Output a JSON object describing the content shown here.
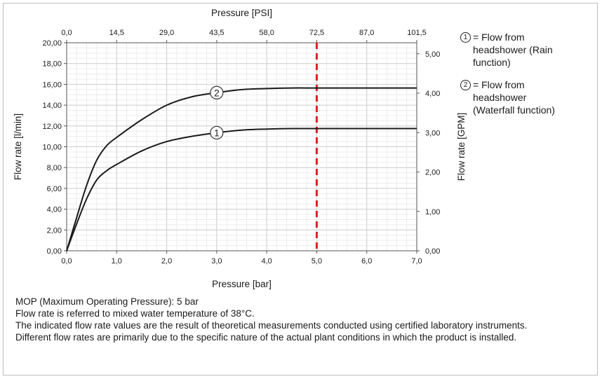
{
  "chart_data": {
    "type": "line",
    "title": "",
    "xlabel": "Pressure [bar]",
    "ylabel": "Flow rate [l/min]",
    "x2label": "Pressure [PSI]",
    "y2label": "Flow rate [GPM]",
    "xlim": [
      0,
      7
    ],
    "ylim": [
      0,
      20
    ],
    "y2lim": [
      0,
      5.28
    ],
    "x_ticks": [
      "0,0",
      "1,0",
      "2,0",
      "3,0",
      "4,0",
      "5,0",
      "6,0",
      "7,0"
    ],
    "x2_ticks": [
      "0,0",
      "14,5",
      "29,0",
      "43,5",
      "58,0",
      "72,5",
      "87,0",
      "101,5"
    ],
    "y_ticks": [
      "0,00",
      "2,00",
      "4,00",
      "6,00",
      "8,00",
      "10,00",
      "12,00",
      "14,00",
      "16,00",
      "18,00",
      "20,00"
    ],
    "y2_ticks": [
      "0,00",
      "1,00",
      "2,00",
      "3,00",
      "4,00",
      "5,00"
    ],
    "grid": true,
    "reference_line": {
      "x": 5.0,
      "color": "#e31e24",
      "style": "dashed"
    },
    "series": [
      {
        "label": "1",
        "marker_x": 3.0,
        "x": [
          0,
          0.2,
          0.4,
          0.6,
          0.8,
          1.0,
          1.5,
          2.0,
          2.5,
          3.0,
          3.5,
          4.0,
          4.5,
          5.0,
          6.0,
          7.0
        ],
        "values": [
          0,
          2.6,
          5.0,
          6.8,
          7.7,
          8.3,
          9.6,
          10.5,
          11.0,
          11.35,
          11.6,
          11.7,
          11.75,
          11.75,
          11.75,
          11.75
        ]
      },
      {
        "label": "2",
        "marker_x": 3.0,
        "x": [
          0,
          0.2,
          0.4,
          0.6,
          0.8,
          1.0,
          1.5,
          2.0,
          2.5,
          3.0,
          3.5,
          4.0,
          4.5,
          5.0,
          6.0,
          7.0
        ],
        "values": [
          0,
          3.2,
          6.3,
          8.7,
          10.1,
          10.9,
          12.6,
          14.0,
          14.8,
          15.2,
          15.5,
          15.6,
          15.65,
          15.65,
          15.65,
          15.65
        ]
      }
    ],
    "line_color": "#1a1a1a"
  },
  "legend": [
    {
      "num": "1",
      "text": "= Flow from\nheadshower (Rain\nfunction)"
    },
    {
      "num": "2",
      "text": "= Flow from\nheadshower\n(Waterfall function)"
    }
  ],
  "notes": [
    "MOP (Maximum Operating Pressure): 5 bar",
    "Flow rate is referred to mixed water temperature of 38°C.",
    "The indicated flow rate values are the result of theoretical measurements conducted using certified laboratory instruments.",
    "Different flow rates are primarily due to the specific nature of the actual plant conditions in which the product is installed."
  ]
}
